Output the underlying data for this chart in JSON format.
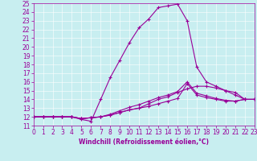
{
  "xlabel": "Windchill (Refroidissement éolien,°C)",
  "bg_color": "#c8eef0",
  "line_color": "#990099",
  "xlim": [
    0,
    23
  ],
  "ylim": [
    11,
    25
  ],
  "xticks": [
    0,
    1,
    2,
    3,
    4,
    5,
    6,
    7,
    8,
    9,
    10,
    11,
    12,
    13,
    14,
    15,
    16,
    17,
    18,
    19,
    20,
    21,
    22,
    23
  ],
  "yticks": [
    11,
    12,
    13,
    14,
    15,
    16,
    17,
    18,
    19,
    20,
    21,
    22,
    23,
    24,
    25
  ],
  "series1_x": [
    0,
    1,
    2,
    3,
    4,
    5,
    6,
    7,
    8,
    9,
    10,
    11,
    12,
    13,
    14,
    15,
    16,
    17,
    18,
    19,
    20,
    21,
    22,
    23
  ],
  "series1_y": [
    12,
    12,
    12,
    12,
    12,
    11.7,
    11.5,
    14,
    16.5,
    18.5,
    20.5,
    22.2,
    23.2,
    24.5,
    24.7,
    24.9,
    23,
    17.7,
    16,
    15.5,
    15,
    14.5,
    14,
    14
  ],
  "series2_x": [
    0,
    1,
    2,
    3,
    4,
    5,
    6,
    7,
    8,
    9,
    10,
    11,
    12,
    13,
    14,
    15,
    16,
    17,
    18,
    19,
    20,
    21,
    22,
    23
  ],
  "series2_y": [
    12,
    12,
    12,
    12,
    12,
    11.8,
    11.9,
    12.0,
    12.2,
    12.5,
    12.8,
    13.0,
    13.2,
    13.5,
    13.8,
    14.1,
    15.8,
    14.5,
    14.2,
    14.0,
    13.8,
    13.8,
    14.0,
    14.0
  ],
  "series3_x": [
    0,
    1,
    2,
    3,
    4,
    5,
    6,
    7,
    8,
    9,
    10,
    11,
    12,
    13,
    14,
    15,
    16,
    17,
    18,
    19,
    20,
    21,
    22,
    23
  ],
  "series3_y": [
    12,
    12,
    12,
    12,
    12,
    11.8,
    11.9,
    12.0,
    12.2,
    12.5,
    12.8,
    13.0,
    13.5,
    14.0,
    14.3,
    14.8,
    15.2,
    15.5,
    15.5,
    15.3,
    15.0,
    14.8,
    14.0,
    14.0
  ],
  "series4_x": [
    0,
    1,
    2,
    3,
    4,
    5,
    6,
    7,
    8,
    9,
    10,
    11,
    12,
    13,
    14,
    15,
    16,
    17,
    18,
    19,
    20,
    21,
    22,
    23
  ],
  "series4_y": [
    12,
    12,
    12,
    12,
    12,
    11.8,
    11.9,
    12.0,
    12.3,
    12.7,
    13.1,
    13.4,
    13.8,
    14.2,
    14.5,
    14.9,
    16.0,
    14.7,
    14.4,
    14.1,
    13.9,
    13.8,
    14.0,
    14.0
  ],
  "tick_fontsize": 5.5,
  "xlabel_fontsize": 5.5,
  "linewidth": 0.8,
  "markersize": 3.5
}
